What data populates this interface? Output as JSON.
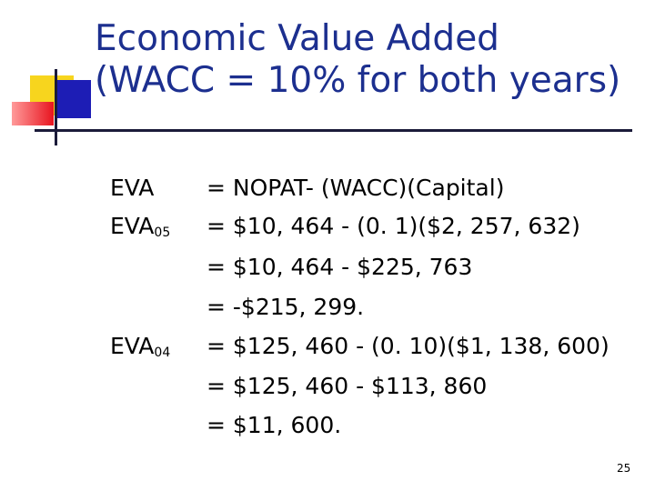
{
  "slide": {
    "title_line1": "Economic Value Added",
    "title_line2": "(WACC = 10% for both years)",
    "page_number": "25"
  },
  "rows": {
    "eva_label": "EVA",
    "eva_formula": "= NOPAT- (WACC)(Capital)",
    "eva05_label": "EVA",
    "eva05_sub": "05",
    "eva05_line1": "= $10, 464 - (0. 1)($2, 257, 632)",
    "eva05_line2": "= $10, 464 - $225, 763",
    "eva05_line3": "= -$215, 299.",
    "eva04_label": "EVA",
    "eva04_sub": "04",
    "eva04_line1": "= $125, 460 - (0. 10)($1, 138, 600)",
    "eva04_line2": "= $125, 460 - $113, 860",
    "eva04_line3": "= $11, 600."
  },
  "colors": {
    "title": "#1c2f8f",
    "deco_yellow": "#f7d51e",
    "deco_red": "#e8141f",
    "deco_blue": "#1d1db5",
    "rule": "#1b1b3a"
  }
}
